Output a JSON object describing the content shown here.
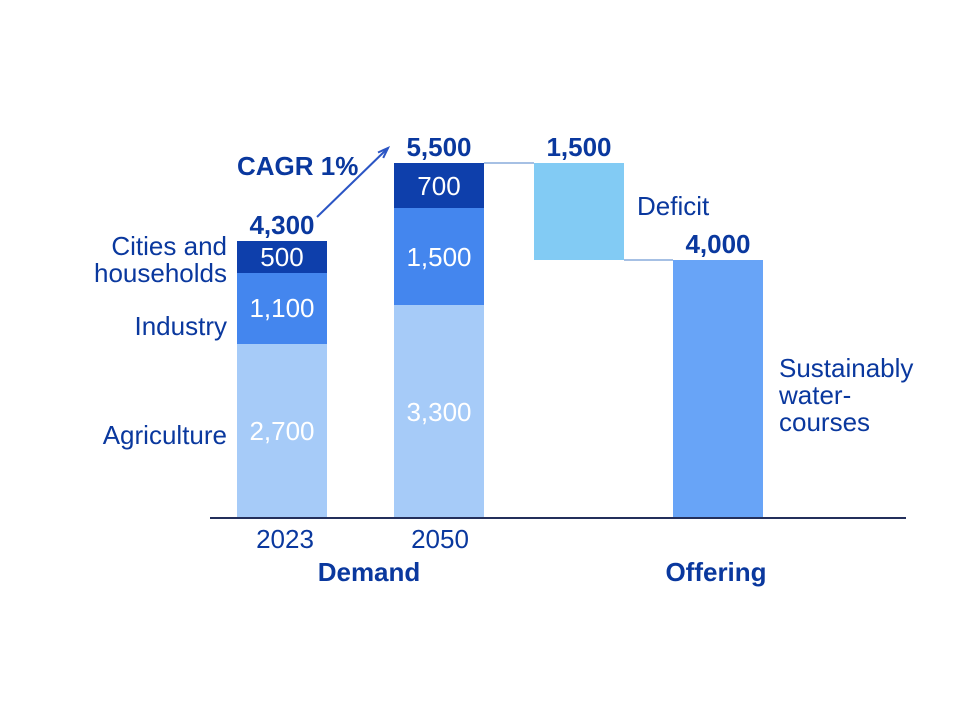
{
  "colors": {
    "text": "#0A389E",
    "light_blue": "#A6CBF8",
    "medium_blue": "#4486EE",
    "dark_blue": "#0E3FAB",
    "sky_blue": "#82CBF4",
    "offering_blue": "#68A4F7",
    "axis": "#232F5B",
    "connector": "#A6C0E4",
    "arrow": "#2B55C4",
    "segment_label": "#FFFFFF"
  },
  "labels": {
    "cagr": "CAGR 1%",
    "cities": "Cities and\nhouseholds",
    "industry": "Industry",
    "agriculture": "Agriculture",
    "deficit_annotation": "Deficit",
    "sustainably": "Sustainably\nwater-\ncourses",
    "tick_2023": "2023",
    "tick_2050": "2050",
    "group_demand": "Demand",
    "group_offering": "Offering"
  },
  "chart_data": {
    "type": "bar",
    "subtype": "stacked_waterfall",
    "title": "",
    "xlabel": "",
    "ylabel": "",
    "value_range": [
      0,
      5500
    ],
    "grid": false,
    "legend_position": "left-of-first-bar",
    "stack_legend": [
      "Cities and households",
      "Industry",
      "Agriculture"
    ],
    "groups": [
      {
        "label": "Demand",
        "categories": [
          "2023",
          "2050"
        ]
      },
      {
        "label": "Offering",
        "categories": [
          "Sustainably watercourses"
        ]
      }
    ],
    "cagr_annotation": "CAGR 1%",
    "bars": [
      {
        "id": "demand-2023",
        "tick_label": "2023",
        "total": 4300,
        "total_label": "4,300",
        "segments": [
          {
            "name": "Agriculture",
            "value": 2700,
            "label": "2,700",
            "color": "light_blue"
          },
          {
            "name": "Industry",
            "value": 1100,
            "label": "1,100",
            "color": "medium_blue"
          },
          {
            "name": "Cities and households",
            "value": 500,
            "label": "500",
            "color": "dark_blue"
          }
        ]
      },
      {
        "id": "demand-2050",
        "tick_label": "2050",
        "total": 5500,
        "total_label": "5,500",
        "segments": [
          {
            "name": "Agriculture",
            "value": 3300,
            "label": "3,300",
            "color": "light_blue"
          },
          {
            "name": "Industry",
            "value": 1500,
            "label": "1,500",
            "color": "medium_blue"
          },
          {
            "name": "Cities and households",
            "value": 700,
            "label": "700",
            "color": "dark_blue"
          }
        ]
      },
      {
        "id": "deficit",
        "tick_label": "",
        "floating": true,
        "from": 4000,
        "to": 5500,
        "total": 1500,
        "total_label": "1,500",
        "annotation": "Deficit",
        "segments": [
          {
            "name": "Deficit",
            "value": 1500,
            "label": "",
            "color": "sky_blue"
          }
        ]
      },
      {
        "id": "offering",
        "tick_label": "",
        "total": 4000,
        "total_label": "4,000",
        "annotation": "Sustainably watercourses",
        "segments": [
          {
            "name": "Sustainably watercourses",
            "value": 4000,
            "label": "",
            "color": "offering_blue"
          }
        ]
      }
    ]
  }
}
